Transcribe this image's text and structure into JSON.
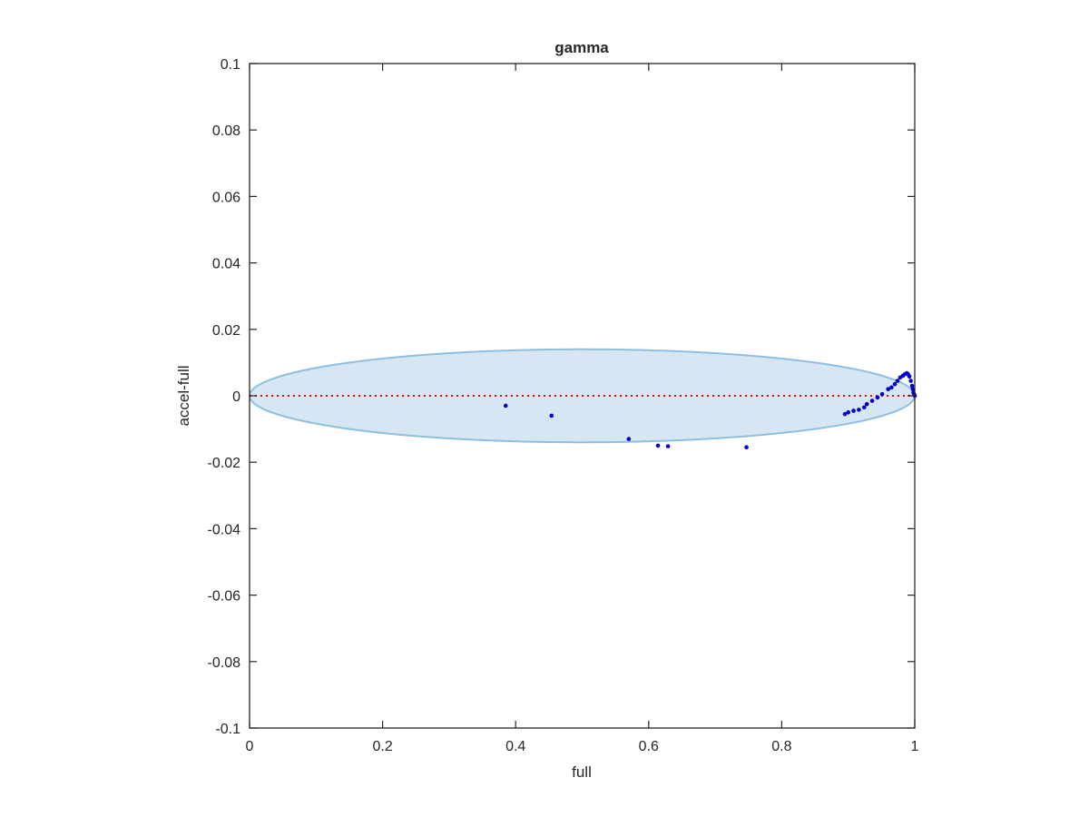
{
  "chart_data": {
    "type": "scatter",
    "title": "gamma",
    "xlabel": "full",
    "ylabel": "accel-full",
    "xlim": [
      0,
      1
    ],
    "ylim": [
      -0.1,
      0.1
    ],
    "x_ticks": [
      0,
      0.2,
      0.4,
      0.6,
      0.8,
      1
    ],
    "x_tick_labels": [
      "0",
      "0.2",
      "0.4",
      "0.6",
      "0.8",
      "1"
    ],
    "y_ticks": [
      -0.1,
      -0.08,
      -0.06,
      -0.04,
      -0.02,
      0,
      0.02,
      0.04,
      0.06,
      0.08,
      0.1
    ],
    "y_tick_labels": [
      "-0.1",
      "-0.08",
      "-0.06",
      "-0.04",
      "-0.02",
      "0",
      "0.02",
      "0.04",
      "0.06",
      "0.08",
      "0.1"
    ],
    "grid": false,
    "box": true,
    "reference_line": {
      "y": 0,
      "style": "dotted",
      "color": "#ff0000"
    },
    "ellipse": {
      "center": [
        0.5,
        0
      ],
      "x_radius": 0.5,
      "y_radius": 0.014,
      "fill": "#d6e6f3",
      "stroke": "#8fbfe0"
    },
    "series": [
      {
        "color": "#0000cc",
        "marker": "dot",
        "x": [
          0.385,
          0.454,
          0.57,
          0.614,
          0.629,
          0.747,
          0.895,
          0.9,
          0.908,
          0.916,
          0.924,
          0.928,
          0.936,
          0.944,
          0.951,
          0.96,
          0.965,
          0.97,
          0.974,
          0.978,
          0.982,
          0.985,
          0.988,
          0.99,
          0.992,
          0.994,
          0.996,
          0.997,
          0.998,
          0.999,
          1.0
        ],
        "y": [
          -0.003,
          -0.006,
          -0.013,
          -0.015,
          -0.0152,
          -0.0155,
          -0.0055,
          -0.005,
          -0.0045,
          -0.0042,
          -0.0035,
          -0.0025,
          -0.0015,
          -0.0005,
          0.0005,
          0.002,
          0.0025,
          0.0035,
          0.0045,
          0.0055,
          0.006,
          0.0065,
          0.0068,
          0.0065,
          0.0058,
          0.0045,
          0.003,
          0.002,
          0.001,
          0.0005,
          0.0
        ]
      }
    ]
  }
}
